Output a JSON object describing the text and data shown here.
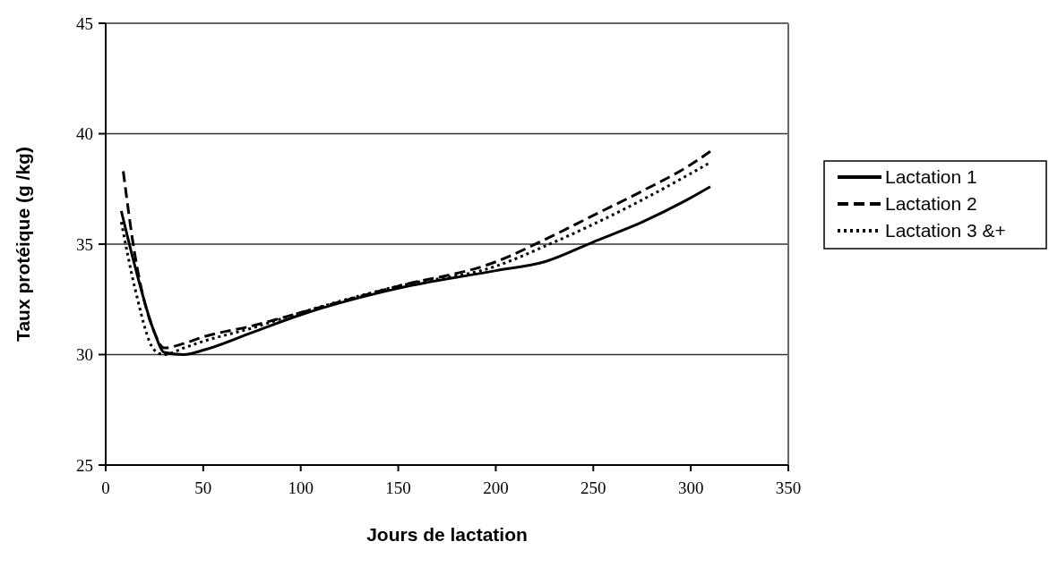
{
  "chart_data": {
    "type": "line",
    "xlabel": "Jours de lactation",
    "ylabel": "Taux protéique (g /kg)",
    "xlim": [
      0,
      350
    ],
    "xticks": [
      0,
      50,
      100,
      150,
      200,
      250,
      300,
      350
    ],
    "ylim": [
      25,
      45
    ],
    "yticks": [
      25,
      30,
      35,
      40,
      45
    ],
    "grid": "y",
    "legend": "right",
    "series": [
      {
        "name": "Lactation 1",
        "color": "#000000",
        "line_style": "solid",
        "x": [
          8,
          15,
          25,
          30,
          40,
          50,
          75,
          100,
          150,
          200,
          225,
          250,
          275,
          300,
          310
        ],
        "values": [
          36.5,
          34,
          31,
          30.1,
          30,
          30.2,
          31,
          31.8,
          33,
          33.8,
          34.2,
          35.1,
          36,
          37.1,
          37.6
        ]
      },
      {
        "name": "Lactation 2",
        "color": "#000000",
        "line_style": "dashed",
        "x": [
          9,
          15,
          25,
          30,
          40,
          50,
          75,
          100,
          150,
          200,
          225,
          250,
          275,
          300,
          310
        ],
        "values": [
          38.3,
          34.5,
          31,
          30.3,
          30.5,
          30.8,
          31.3,
          31.9,
          33.1,
          34.2,
          35.2,
          36.3,
          37.4,
          38.6,
          39.2
        ]
      },
      {
        "name": "Lactation 3 &+",
        "color": "#000000",
        "line_style": "dotted",
        "x": [
          8,
          15,
          25,
          30,
          40,
          50,
          75,
          100,
          150,
          200,
          225,
          250,
          275,
          300,
          310
        ],
        "values": [
          36,
          33,
          30.2,
          30,
          30.3,
          30.6,
          31.2,
          31.9,
          33.1,
          34,
          34.9,
          35.9,
          37,
          38.2,
          38.7
        ]
      }
    ]
  }
}
